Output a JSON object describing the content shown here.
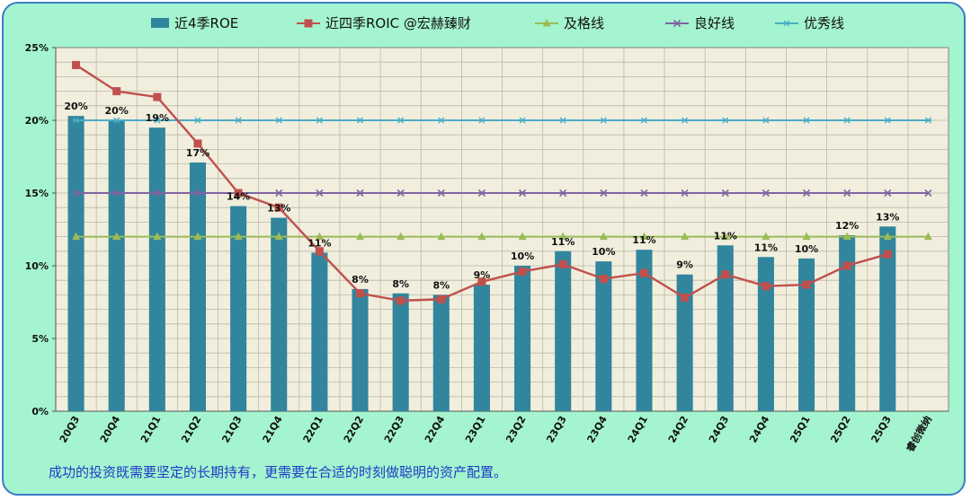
{
  "caption": "成功的投资既需要坚定的长期持有，更需要在合适的时刻做聪明的资产配置。",
  "colors": {
    "background": "#a4f4cf",
    "border": "#3d7cc9",
    "plot_bg": "#f1eedd",
    "grid": "#b9b9a9",
    "roe_bar": "#31859c",
    "roic_line": "#c0504d",
    "pass_line": "#9bbb59",
    "good_line": "#8064a2",
    "excellent_line": "#4bacc6",
    "caption": "#1f3ac7"
  },
  "chart_data": {
    "type": "bar",
    "title": "",
    "xlabel": "",
    "ylabel": "",
    "ylim": [
      0,
      25
    ],
    "yticks": [
      "0%",
      "5%",
      "10%",
      "15%",
      "20%",
      "25%"
    ],
    "grid": true,
    "legend_position": "top",
    "categories": [
      "20Q3",
      "20Q4",
      "21Q1",
      "21Q2",
      "21Q3",
      "21Q4",
      "22Q1",
      "22Q2",
      "22Q3",
      "22Q4",
      "23Q1",
      "23Q2",
      "23Q3",
      "23Q4",
      "24Q1",
      "24Q2",
      "24Q3",
      "24Q4",
      "25Q1",
      "25Q2",
      "25Q3",
      "睿创微纳"
    ],
    "series": [
      {
        "name": "近4季ROE",
        "kind": "bar",
        "icon": "bar-swatch",
        "values": [
          20.3,
          20.0,
          19.5,
          17.1,
          14.1,
          13.3,
          10.9,
          8.4,
          8.1,
          8.0,
          8.7,
          10.0,
          11.0,
          10.3,
          11.1,
          9.4,
          11.4,
          10.6,
          10.5,
          12.1,
          12.7,
          null
        ],
        "labels": [
          "20%",
          "20%",
          "19%",
          "17%",
          "14%",
          "13%",
          "11%",
          "8%",
          "8%",
          "8%",
          "9%",
          "10%",
          "11%",
          "10%",
          "11%",
          "9%",
          "11%",
          "11%",
          "10%",
          "12%",
          "13%",
          ""
        ]
      },
      {
        "name": "近四季ROIC   @宏赫臻财",
        "kind": "line",
        "marker": "square",
        "icon": "square-marker-icon",
        "values": [
          23.8,
          22.0,
          21.6,
          18.4,
          15.0,
          14.0,
          11.0,
          8.1,
          7.6,
          7.7,
          8.9,
          9.6,
          10.1,
          9.1,
          9.5,
          7.8,
          9.4,
          8.6,
          8.7,
          10.0,
          10.8,
          null
        ]
      },
      {
        "name": "及格线",
        "kind": "line",
        "marker": "triangle",
        "icon": "triangle-marker-icon",
        "values": [
          12,
          12,
          12,
          12,
          12,
          12,
          12,
          12,
          12,
          12,
          12,
          12,
          12,
          12,
          12,
          12,
          12,
          12,
          12,
          12,
          12,
          12
        ]
      },
      {
        "name": "良好线",
        "kind": "line",
        "marker": "x",
        "icon": "x-marker-icon",
        "values": [
          15,
          15,
          15,
          15,
          15,
          15,
          15,
          15,
          15,
          15,
          15,
          15,
          15,
          15,
          15,
          15,
          15,
          15,
          15,
          15,
          15,
          15
        ]
      },
      {
        "name": "优秀线",
        "kind": "line",
        "marker": "asterisk",
        "icon": "asterisk-marker-icon",
        "values": [
          20,
          20,
          20,
          20,
          20,
          20,
          20,
          20,
          20,
          20,
          20,
          20,
          20,
          20,
          20,
          20,
          20,
          20,
          20,
          20,
          20,
          20
        ]
      }
    ]
  }
}
